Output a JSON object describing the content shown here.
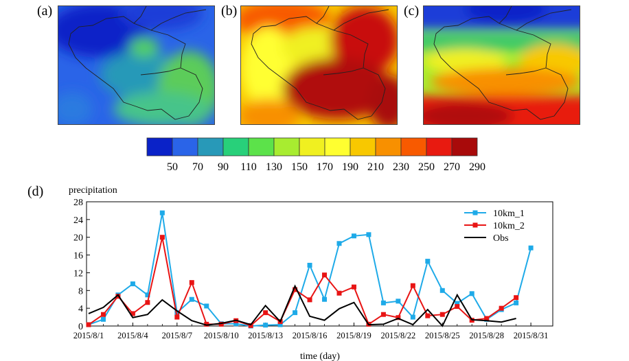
{
  "panels": {
    "a": {
      "label": "(a)"
    },
    "b": {
      "label": "(b)"
    },
    "c": {
      "label": "(c)"
    },
    "d": {
      "label": "(d)"
    }
  },
  "colorbar": {
    "colors": [
      "#0a22c8",
      "#2a64e8",
      "#2899b8",
      "#28d07a",
      "#5ce24a",
      "#a8ec30",
      "#f0f020",
      "#ffff30",
      "#f8c800",
      "#f89000",
      "#f85a00",
      "#e81a10",
      "#a80a0a"
    ],
    "tick_labels": [
      "50",
      "70",
      "90",
      "110",
      "130",
      "150",
      "170",
      "190",
      "210",
      "230",
      "250",
      "270",
      "290"
    ]
  },
  "chart_data": {
    "type": "line",
    "ylabel": "precipitation",
    "xlabel": "time (day)",
    "ylim": [
      0,
      28
    ],
    "yticks": [
      0,
      4,
      8,
      12,
      16,
      20,
      24,
      28
    ],
    "xtick_labels": [
      "2015/8/1",
      "2015/8/4",
      "2015/8/7",
      "2015/8/10",
      "2015/8/13",
      "2015/8/16",
      "2015/8/19",
      "2015/8/22",
      "2015/8/25",
      "2015/8/28",
      "2015/8/31"
    ],
    "legend_position": "top-right",
    "series": [
      {
        "name": "10km_1",
        "color": "#1eaae8",
        "marker": "square",
        "values": [
          0.3,
          1.5,
          7.0,
          9.5,
          7.0,
          25.5,
          3.0,
          6.0,
          4.5,
          0.5,
          0.5,
          0.0,
          0.2,
          0.3,
          3.0,
          13.7,
          6.0,
          18.6,
          20.3,
          20.6,
          5.2,
          5.6,
          2.0,
          14.6,
          8.0,
          5.1,
          7.3,
          1.5,
          3.7,
          5.2,
          17.6
        ]
      },
      {
        "name": "10km_2",
        "color": "#e81414",
        "marker": "square",
        "values": [
          0.3,
          2.6,
          6.7,
          2.8,
          5.3,
          20.0,
          2.0,
          9.8,
          0.4,
          0.4,
          1.2,
          0.1,
          3.0,
          1.0,
          8.2,
          5.9,
          11.5,
          7.4,
          8.8,
          0.4,
          2.6,
          1.9,
          9.1,
          2.3,
          2.6,
          4.4,
          1.3,
          1.7,
          4.0,
          6.4,
          null
        ]
      },
      {
        "name": "Obs",
        "color": "#000000",
        "marker": "none",
        "values": [
          2.8,
          4.2,
          7.0,
          1.9,
          2.6,
          5.9,
          3.4,
          1.2,
          0.2,
          0.6,
          1.3,
          0.3,
          4.6,
          1.0,
          9.0,
          2.2,
          1.3,
          3.9,
          5.3,
          0.3,
          0.4,
          1.7,
          0.3,
          3.7,
          0.0,
          7.0,
          1.4,
          1.2,
          0.9,
          1.7,
          null
        ]
      }
    ]
  }
}
